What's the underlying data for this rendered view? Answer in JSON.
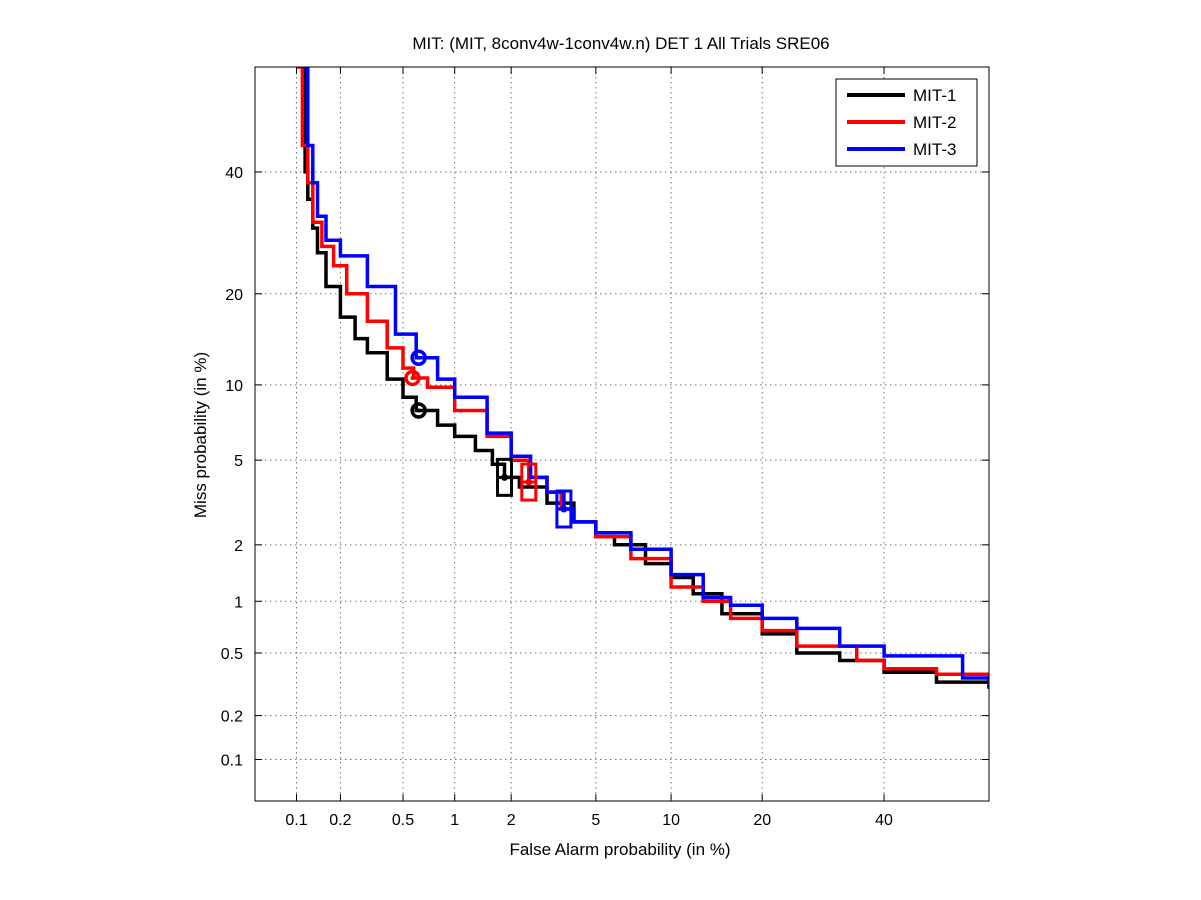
{
  "chart_data": {
    "type": "line",
    "title": "MIT: (MIT, 8conv4w-1conv4w.n) DET 1 All Trials SRE06",
    "xlabel": "False Alarm probability (in %)",
    "ylabel": "Miss probability (in %)",
    "scale": "probit (normal deviate)",
    "xlim": [
      0.05,
      60
    ],
    "ylim": [
      0.05,
      60
    ],
    "xticks": [
      0.1,
      0.2,
      0.5,
      1,
      2,
      5,
      10,
      20,
      40
    ],
    "xtick_labels": [
      "0.1",
      "0.2",
      "0.5",
      "1",
      "2",
      "5",
      "10",
      "20",
      "40"
    ],
    "yticks": [
      0.1,
      0.2,
      0.5,
      1,
      2,
      5,
      10,
      20,
      40
    ],
    "ytick_labels": [
      "0.1",
      "0.2",
      "0.5",
      "1",
      "2",
      "5",
      "10",
      "20",
      "40"
    ],
    "grid": true,
    "legend_position": "top-right",
    "series": [
      {
        "name": "MIT-1",
        "color": "#000000",
        "points": [
          [
            0.115,
            60
          ],
          [
            0.115,
            40
          ],
          [
            0.12,
            35
          ],
          [
            0.13,
            30
          ],
          [
            0.14,
            26
          ],
          [
            0.16,
            21
          ],
          [
            0.2,
            17
          ],
          [
            0.25,
            14.5
          ],
          [
            0.3,
            13
          ],
          [
            0.4,
            10.5
          ],
          [
            0.5,
            9
          ],
          [
            0.6,
            8
          ],
          [
            0.8,
            7
          ],
          [
            1,
            6.3
          ],
          [
            1.3,
            5.5
          ],
          [
            1.6,
            4.8
          ],
          [
            1.85,
            4.2
          ],
          [
            2.2,
            3.8
          ],
          [
            3,
            3.2
          ],
          [
            4,
            2.6
          ],
          [
            5,
            2.2
          ],
          [
            6,
            2
          ],
          [
            8,
            1.6
          ],
          [
            10,
            1.35
          ],
          [
            12,
            1.1
          ],
          [
            15,
            0.85
          ],
          [
            20,
            0.65
          ],
          [
            25,
            0.5
          ],
          [
            32,
            0.45
          ],
          [
            40,
            0.38
          ],
          [
            50,
            0.33
          ],
          [
            60,
            0.3
          ]
        ],
        "min_dcf_point": [
          0.62,
          8
        ],
        "actual_dcf_point": [
          1.85,
          4.2
        ]
      },
      {
        "name": "MIT-2",
        "color": "#ff0000",
        "points": [
          [
            0.1,
            60
          ],
          [
            0.11,
            45
          ],
          [
            0.12,
            38
          ],
          [
            0.13,
            31
          ],
          [
            0.15,
            27
          ],
          [
            0.18,
            24
          ],
          [
            0.22,
            20
          ],
          [
            0.3,
            16.5
          ],
          [
            0.4,
            13.5
          ],
          [
            0.5,
            11.5
          ],
          [
            0.58,
            10.6
          ],
          [
            0.7,
            9.8
          ],
          [
            1,
            8
          ],
          [
            1.5,
            6.3
          ],
          [
            2,
            5
          ],
          [
            2.45,
            4.2
          ],
          [
            3,
            3.6
          ],
          [
            3.5,
            3
          ],
          [
            4,
            2.6
          ],
          [
            5,
            2.2
          ],
          [
            7,
            1.7
          ],
          [
            10,
            1.2
          ],
          [
            13,
            1
          ],
          [
            16,
            0.8
          ],
          [
            20,
            0.68
          ],
          [
            25,
            0.55
          ],
          [
            35,
            0.45
          ],
          [
            40,
            0.4
          ],
          [
            50,
            0.37
          ],
          [
            60,
            0.3
          ]
        ],
        "min_dcf_point": [
          0.57,
          10.6
        ],
        "actual_dcf_point": [
          2.45,
          4
        ]
      },
      {
        "name": "MIT-3",
        "color": "#0000ff",
        "points": [
          [
            0.11,
            60
          ],
          [
            0.12,
            45
          ],
          [
            0.13,
            38
          ],
          [
            0.14,
            32
          ],
          [
            0.16,
            28
          ],
          [
            0.2,
            25.5
          ],
          [
            0.3,
            21
          ],
          [
            0.45,
            15
          ],
          [
            0.6,
            12.5
          ],
          [
            0.8,
            10.5
          ],
          [
            1,
            9
          ],
          [
            1.5,
            6.5
          ],
          [
            2,
            5.2
          ],
          [
            2.5,
            4.2
          ],
          [
            3,
            3.6
          ],
          [
            3.6,
            3
          ],
          [
            4,
            2.6
          ],
          [
            5,
            2.3
          ],
          [
            7,
            1.9
          ],
          [
            10,
            1.4
          ],
          [
            13,
            1.05
          ],
          [
            16,
            0.95
          ],
          [
            20,
            0.8
          ],
          [
            25,
            0.7
          ],
          [
            32,
            0.55
          ],
          [
            40,
            0.48
          ],
          [
            55,
            0.35
          ],
          [
            60,
            0.3
          ]
        ],
        "min_dcf_point": [
          0.62,
          12.5
        ],
        "actual_dcf_point": [
          3.6,
          3
        ]
      }
    ]
  }
}
